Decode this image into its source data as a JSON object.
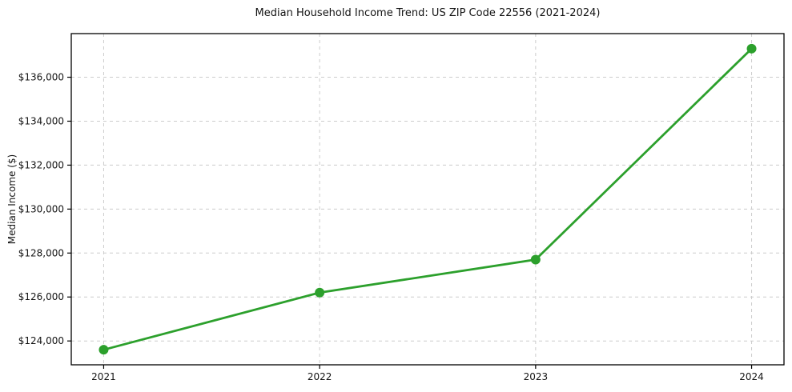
{
  "chart_data": {
    "type": "line",
    "title": "Median Household Income Trend: US ZIP Code 22556 (2021-2024)",
    "xlabel": "",
    "ylabel": "Median Income ($)",
    "x": [
      2021,
      2022,
      2023,
      2024
    ],
    "x_ticks": [
      {
        "value": 2021,
        "label": "2021"
      },
      {
        "value": 2022,
        "label": "2022"
      },
      {
        "value": 2023,
        "label": "2023"
      },
      {
        "value": 2024,
        "label": "2024"
      }
    ],
    "y_ticks": [
      {
        "value": 124000,
        "label": "$124,000"
      },
      {
        "value": 126000,
        "label": "$126,000"
      },
      {
        "value": 128000,
        "label": "$128,000"
      },
      {
        "value": 130000,
        "label": "$130,000"
      },
      {
        "value": 132000,
        "label": "$132,000"
      },
      {
        "value": 134000,
        "label": "$134,000"
      },
      {
        "value": 136000,
        "label": "$136,000"
      }
    ],
    "series": [
      {
        "name": "Median Household Income",
        "values": [
          123600,
          126200,
          127700,
          137300
        ],
        "color": "#2ca02c",
        "marker": "circle",
        "marker_radius": 6,
        "line_width": 2.8
      }
    ],
    "xlim": [
      2020.85,
      2024.15
    ],
    "ylim": [
      122915,
      137985
    ],
    "grid": {
      "visible": true,
      "style": "dashed",
      "color": "#cccccc"
    },
    "legend": "none",
    "background": "#ffffff",
    "text_color": "#141414"
  }
}
